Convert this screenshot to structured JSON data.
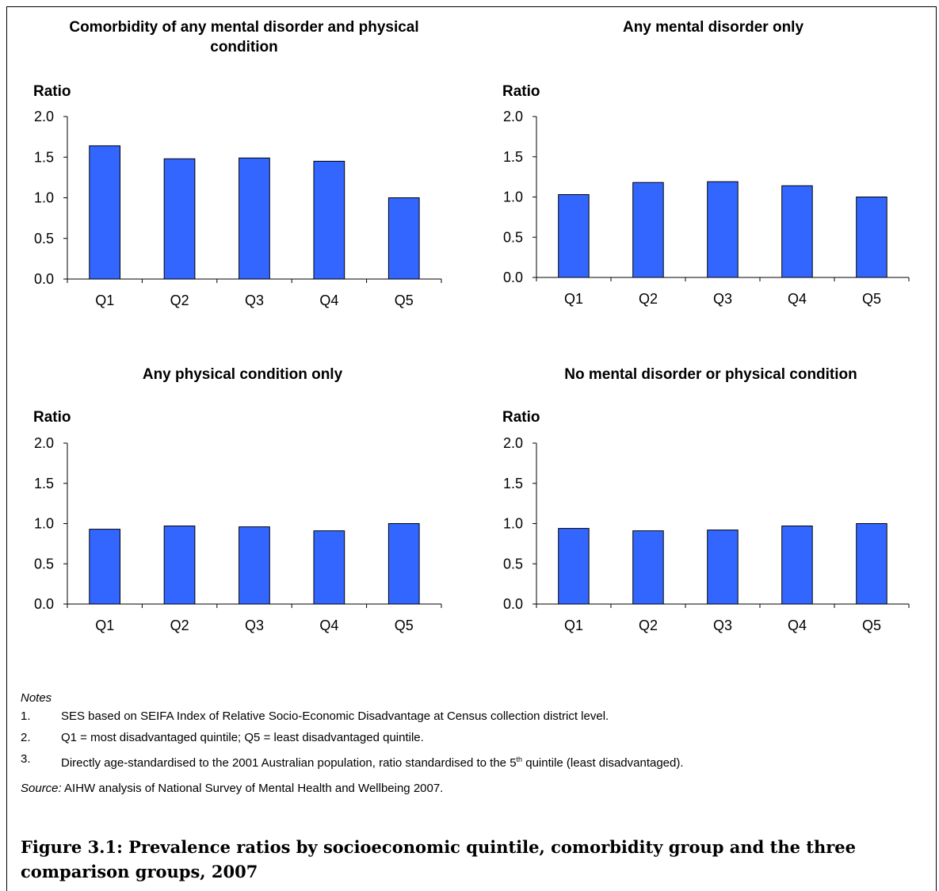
{
  "chart_data": [
    {
      "type": "bar",
      "title": "Comorbidity of any mental disorder and physical condition",
      "ylabel": "Ratio",
      "categories": [
        "Q1",
        "Q2",
        "Q3",
        "Q4",
        "Q5"
      ],
      "values": [
        1.64,
        1.48,
        1.49,
        1.45,
        1.0
      ],
      "ylim": [
        0,
        2.0
      ],
      "yticks": [
        "0.0",
        "0.5",
        "1.0",
        "1.5",
        "2.0"
      ],
      "bar_color": "#3366ff",
      "grid": false
    },
    {
      "type": "bar",
      "title": "Any mental disorder only",
      "ylabel": "Ratio",
      "categories": [
        "Q1",
        "Q2",
        "Q3",
        "Q4",
        "Q5"
      ],
      "values": [
        1.03,
        1.18,
        1.19,
        1.14,
        1.0
      ],
      "ylim": [
        0,
        2.0
      ],
      "yticks": [
        "0.0",
        "0.5",
        "1.0",
        "1.5",
        "2.0"
      ],
      "bar_color": "#3366ff",
      "grid": false
    },
    {
      "type": "bar",
      "title": "Any physical condition only",
      "ylabel": "Ratio",
      "categories": [
        "Q1",
        "Q2",
        "Q3",
        "Q4",
        "Q5"
      ],
      "values": [
        0.93,
        0.97,
        0.96,
        0.91,
        1.0
      ],
      "ylim": [
        0,
        2.0
      ],
      "yticks": [
        "0.0",
        "0.5",
        "1.0",
        "1.5",
        "2.0"
      ],
      "bar_color": "#3366ff",
      "grid": false
    },
    {
      "type": "bar",
      "title": "No mental disorder or physical condition",
      "ylabel": "Ratio",
      "categories": [
        "Q1",
        "Q2",
        "Q3",
        "Q4",
        "Q5"
      ],
      "values": [
        0.94,
        0.91,
        0.92,
        0.97,
        1.0
      ],
      "ylim": [
        0,
        2.0
      ],
      "yticks": [
        "0.0",
        "0.5",
        "1.0",
        "1.5",
        "2.0"
      ],
      "bar_color": "#3366ff",
      "grid": false
    }
  ],
  "notes": {
    "heading": "Notes",
    "items": [
      {
        "num": "1.",
        "text": "SES based on SEIFA Index of Relative Socio-Economic Disadvantage at Census collection district level."
      },
      {
        "num": "2.",
        "text": "Q1 = most disadvantaged quintile; Q5 = least disadvantaged quintile."
      },
      {
        "num": "3.",
        "text_before": "Directly age-standardised to the 2001 Australian population, ratio standardised to the 5",
        "sup": "th",
        "text_after": " quintile (least disadvantaged)."
      }
    ]
  },
  "source": {
    "label": "Source:",
    "text": " AIHW analysis of National Survey of Mental Health and Wellbeing 2007."
  },
  "caption": "Figure 3.1: Prevalence ratios by socioeconomic quintile, comorbidity group and the three comparison groups, 2007"
}
